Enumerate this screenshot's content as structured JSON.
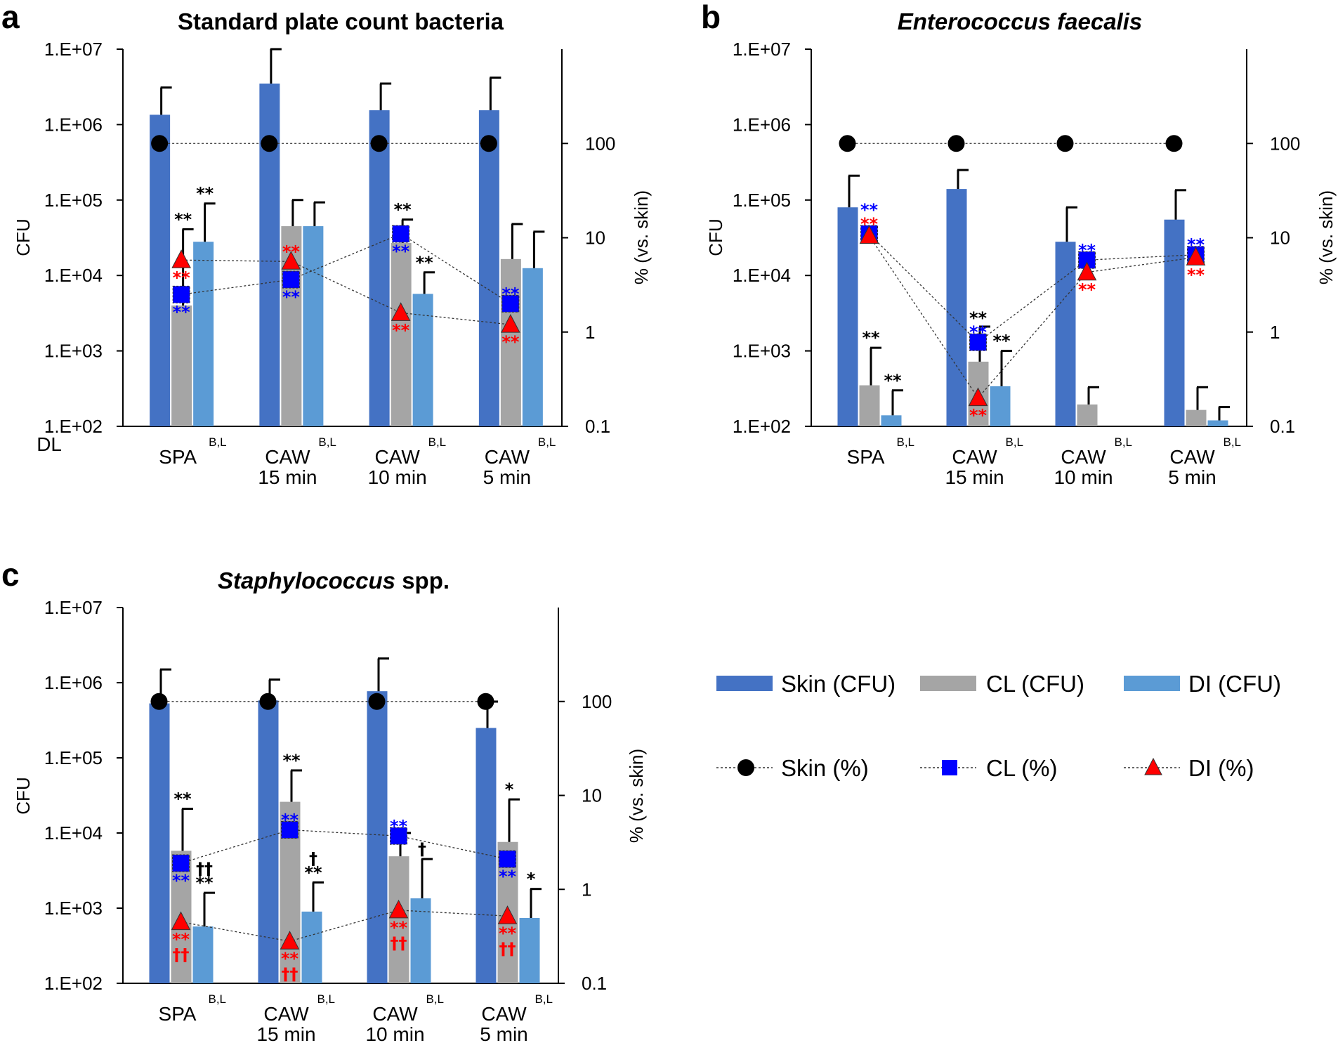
{
  "colors": {
    "skin_bar": "#4472c4",
    "cl_bar": "#a5a5a5",
    "di_bar": "#5b9bd5",
    "skin_marker": "#000000",
    "cl_marker": "#0000ff",
    "di_marker": "#ff0000",
    "sig_black": "#000000",
    "sig_blue": "#0000ff",
    "sig_red": "#ff0000"
  },
  "legend": {
    "bars": [
      "Skin (CFU)",
      "CL (CFU)",
      "DI (CFU)"
    ],
    "lines": [
      "Skin (%)",
      "CL (%)",
      "DI (%)"
    ]
  },
  "chart_data": [
    {
      "panel": "a",
      "type": "bar",
      "title": "Standard plate count bacteria",
      "title_italic": false,
      "ylabel": "CFU",
      "y2label": "% (vs. skin)",
      "yscale": "log",
      "ylim": [
        100,
        10000000
      ],
      "yticks": [
        "1.E+07",
        "1.E+06",
        "1.E+05",
        "1.E+04",
        "1.E+03",
        "1.E+02"
      ],
      "y2lim": [
        0.1,
        1000
      ],
      "y2ticks": [
        "100",
        "10",
        "1",
        "0.1"
      ],
      "dl_label": "DL",
      "categories": [
        {
          "line1": "SPA",
          "line2": "",
          "sup": "B,L"
        },
        {
          "line1": "CAW",
          "line2": "15 min",
          "sup": "B,L"
        },
        {
          "line1": "CAW",
          "line2": "10 min",
          "sup": "B,L"
        },
        {
          "line1": "CAW",
          "line2": "5 min",
          "sup": "B,L"
        }
      ],
      "series": [
        {
          "name": "Skin (CFU)",
          "values": [
            1350000,
            3500000,
            1550000,
            1550000
          ],
          "errors": [
            3100000,
            10000000,
            3500000,
            4200000
          ]
        },
        {
          "name": "CL (CFU)",
          "values": [
            4000,
            45000,
            27000,
            16500
          ],
          "errors": [
            41000,
            100000,
            55000,
            48000
          ]
        },
        {
          "name": "DI (CFU)",
          "values": [
            28000,
            45000,
            5700,
            12500
          ],
          "errors": [
            90000,
            93000,
            11000,
            38000
          ]
        }
      ],
      "pct_series": [
        {
          "name": "Skin (%)",
          "values": [
            100,
            100,
            100,
            100
          ]
        },
        {
          "name": "CL (%)",
          "values": [
            2.5,
            3.6,
            11,
            2.0
          ]
        },
        {
          "name": "DI (%)",
          "values": [
            5.8,
            5.6,
            1.6,
            1.2
          ]
        }
      ],
      "annotations": [
        {
          "cat": 0,
          "slot": "cl",
          "anchor": "err",
          "color": "black",
          "text": "**"
        },
        {
          "cat": 0,
          "slot": "di",
          "anchor": "err",
          "color": "black",
          "text": "**"
        },
        {
          "cat": 0,
          "slot": "cl",
          "anchor": "di_pct",
          "color": "red",
          "text": "**"
        },
        {
          "cat": 0,
          "slot": "cl",
          "anchor": "cl_pct",
          "color": "blue",
          "text": "**"
        },
        {
          "cat": 1,
          "slot": "cl",
          "anchor": "di_pct",
          "color": "red",
          "text": "**",
          "pos": "above"
        },
        {
          "cat": 1,
          "slot": "cl",
          "anchor": "cl_pct",
          "color": "blue",
          "text": "**"
        },
        {
          "cat": 2,
          "slot": "cl",
          "anchor": "err",
          "color": "black",
          "text": "**"
        },
        {
          "cat": 2,
          "slot": "cl",
          "anchor": "cl_pct",
          "color": "blue",
          "text": "**"
        },
        {
          "cat": 2,
          "slot": "di",
          "anchor": "err",
          "color": "black",
          "text": "**"
        },
        {
          "cat": 2,
          "slot": "cl",
          "anchor": "di_pct",
          "color": "red",
          "text": "**"
        },
        {
          "cat": 3,
          "slot": "cl",
          "anchor": "cl_pct",
          "color": "blue",
          "text": "**",
          "pos": "above"
        },
        {
          "cat": 3,
          "slot": "cl",
          "anchor": "di_pct",
          "color": "red",
          "text": "**"
        }
      ]
    },
    {
      "panel": "b",
      "type": "bar",
      "title": "Enterococcus faecalis",
      "title_italic": true,
      "ylabel": "CFU",
      "y2label": "% (vs. skin)",
      "yscale": "log",
      "ylim": [
        100,
        10000000
      ],
      "yticks": [
        "1.E+07",
        "1.E+06",
        "1.E+05",
        "1.E+04",
        "1.E+03",
        "1.E+02"
      ],
      "y2lim": [
        0.1,
        1000
      ],
      "y2ticks": [
        "100",
        "10",
        "1",
        "0.1"
      ],
      "categories": [
        {
          "line1": "SPA",
          "line2": "",
          "sup": "B,L"
        },
        {
          "line1": "CAW",
          "line2": "15 min",
          "sup": "B,L"
        },
        {
          "line1": "CAW",
          "line2": "10 min",
          "sup": "B,L"
        },
        {
          "line1": "CAW",
          "line2": "5 min",
          "sup": "B,L"
        }
      ],
      "series": [
        {
          "name": "Skin (CFU)",
          "values": [
            80000,
            140000,
            28000,
            55000
          ],
          "errors": [
            210000,
            250000,
            80000,
            135000
          ]
        },
        {
          "name": "CL (CFU)",
          "values": [
            350,
            720,
            195,
            165
          ],
          "errors": [
            1100,
            2100,
            330,
            330
          ]
        },
        {
          "name": "DI (CFU)",
          "values": [
            140,
            340,
            100,
            120
          ],
          "errors": [
            300,
            1000,
            null,
            180
          ]
        }
      ],
      "pct_series": [
        {
          "name": "Skin (%)",
          "values": [
            100,
            100,
            100,
            100
          ]
        },
        {
          "name": "CL (%)",
          "values": [
            11,
            0.78,
            5.8,
            6.6
          ]
        },
        {
          "name": "DI (%)",
          "values": [
            10.5,
            0.2,
            4.3,
            6.2
          ]
        }
      ],
      "annotations": [
        {
          "cat": 0,
          "slot": "cl",
          "anchor": "cl_pct",
          "color": "blue",
          "text": "**",
          "pos": "above2"
        },
        {
          "cat": 0,
          "slot": "cl",
          "anchor": "cl_pct",
          "color": "red",
          "text": "**",
          "pos": "above"
        },
        {
          "cat": 0,
          "slot": "cl",
          "anchor": "err",
          "color": "black",
          "text": "**"
        },
        {
          "cat": 0,
          "slot": "di",
          "anchor": "err",
          "color": "black",
          "text": "**"
        },
        {
          "cat": 1,
          "slot": "cl",
          "anchor": "cl_pct",
          "color": "black",
          "text": "**",
          "pos": "above2"
        },
        {
          "cat": 1,
          "slot": "cl",
          "anchor": "cl_pct",
          "color": "blue",
          "text": "**",
          "pos": "above"
        },
        {
          "cat": 1,
          "slot": "di",
          "anchor": "err",
          "color": "black",
          "text": "**"
        },
        {
          "cat": 1,
          "slot": "cl",
          "anchor": "di_pct",
          "color": "red",
          "text": "**"
        },
        {
          "cat": 2,
          "slot": "cl",
          "anchor": "cl_pct",
          "color": "blue",
          "text": "**",
          "pos": "above"
        },
        {
          "cat": 2,
          "slot": "cl",
          "anchor": "di_pct",
          "color": "red",
          "text": "**"
        },
        {
          "cat": 3,
          "slot": "cl",
          "anchor": "cl_pct",
          "color": "blue",
          "text": "**",
          "pos": "above"
        },
        {
          "cat": 3,
          "slot": "cl",
          "anchor": "di_pct",
          "color": "red",
          "text": "**"
        }
      ]
    },
    {
      "panel": "c",
      "type": "bar",
      "title": "Staphylococcus spp.",
      "title_italic_part": "Staphylococcus",
      "title_rest": " spp.",
      "ylabel": "CFU",
      "y2label": "% (vs. skin)",
      "yscale": "log",
      "ylim": [
        100,
        10000000
      ],
      "yticks": [
        "1.E+07",
        "1.E+06",
        "1.E+05",
        "1.E+04",
        "1.E+03",
        "1.E+02"
      ],
      "y2lim": [
        0.1,
        1000
      ],
      "y2ticks": [
        "100",
        "10",
        "1",
        "0.1"
      ],
      "categories": [
        {
          "line1": "SPA",
          "line2": "",
          "sup": "B,L"
        },
        {
          "line1": "CAW",
          "line2": "15 min",
          "sup": "B,L"
        },
        {
          "line1": "CAW",
          "line2": "10 min",
          "sup": "B,L"
        },
        {
          "line1": "CAW",
          "line2": "5 min",
          "sup": "B,L"
        }
      ],
      "series": [
        {
          "name": "Skin (CFU)",
          "values": [
            530000,
            580000,
            770000,
            250000
          ],
          "errors": [
            1500000,
            1100000,
            2100000,
            560000
          ]
        },
        {
          "name": "CL (CFU)",
          "values": [
            5800,
            26000,
            4900,
            7600
          ],
          "errors": [
            21000,
            68000,
            10000,
            28000
          ]
        },
        {
          "name": "DI (CFU)",
          "values": [
            570,
            900,
            1350,
            740
          ],
          "errors": [
            1600,
            2200,
            4500,
            1800
          ]
        }
      ],
      "pct_series": [
        {
          "name": "Skin (%)",
          "values": [
            100,
            100,
            100,
            100
          ]
        },
        {
          "name": "CL (%)",
          "values": [
            1.9,
            4.3,
            3.7,
            2.1
          ]
        },
        {
          "name": "DI (%)",
          "values": [
            0.45,
            0.28,
            0.6,
            0.52
          ]
        }
      ],
      "annotations": [
        {
          "cat": 0,
          "slot": "cl",
          "anchor": "err",
          "color": "black",
          "text": "**"
        },
        {
          "cat": 0,
          "slot": "cl",
          "anchor": "cl_pct",
          "color": "blue",
          "text": "**"
        },
        {
          "cat": 0,
          "slot": "di",
          "anchor": "err",
          "color": "black",
          "text": "**"
        },
        {
          "cat": 0,
          "slot": "di",
          "anchor": "err",
          "color": "black",
          "text": "††",
          "pos": "above2"
        },
        {
          "cat": 0,
          "slot": "cl",
          "anchor": "di_pct",
          "color": "red",
          "text": "**"
        },
        {
          "cat": 0,
          "slot": "cl",
          "anchor": "di_pct",
          "color": "red",
          "text": "††",
          "pos": "below2"
        },
        {
          "cat": 1,
          "slot": "cl",
          "anchor": "err",
          "color": "black",
          "text": "**"
        },
        {
          "cat": 1,
          "slot": "cl",
          "anchor": "cl_pct",
          "color": "blue",
          "text": "**",
          "pos": "above"
        },
        {
          "cat": 1,
          "slot": "di",
          "anchor": "err",
          "color": "black",
          "text": "**"
        },
        {
          "cat": 1,
          "slot": "di",
          "anchor": "err",
          "color": "black",
          "text": "†",
          "pos": "above2"
        },
        {
          "cat": 1,
          "slot": "cl",
          "anchor": "di_pct",
          "color": "red",
          "text": "**"
        },
        {
          "cat": 1,
          "slot": "cl",
          "anchor": "di_pct",
          "color": "red",
          "text": "††",
          "pos": "below2"
        },
        {
          "cat": 2,
          "slot": "cl",
          "anchor": "cl_pct",
          "color": "blue",
          "text": "**",
          "pos": "above"
        },
        {
          "cat": 2,
          "slot": "di",
          "anchor": "err",
          "color": "black",
          "text": "†"
        },
        {
          "cat": 2,
          "slot": "cl",
          "anchor": "di_pct",
          "color": "red",
          "text": "**"
        },
        {
          "cat": 2,
          "slot": "cl",
          "anchor": "di_pct",
          "color": "red",
          "text": "††",
          "pos": "below2"
        },
        {
          "cat": 3,
          "slot": "cl",
          "anchor": "err",
          "color": "black",
          "text": "*"
        },
        {
          "cat": 3,
          "slot": "cl",
          "anchor": "cl_pct",
          "color": "blue",
          "text": "**"
        },
        {
          "cat": 3,
          "slot": "di",
          "anchor": "err",
          "color": "black",
          "text": "*"
        },
        {
          "cat": 3,
          "slot": "cl",
          "anchor": "di_pct",
          "color": "red",
          "text": "**"
        },
        {
          "cat": 3,
          "slot": "cl",
          "anchor": "di_pct",
          "color": "red",
          "text": "††",
          "pos": "below2"
        }
      ]
    }
  ]
}
